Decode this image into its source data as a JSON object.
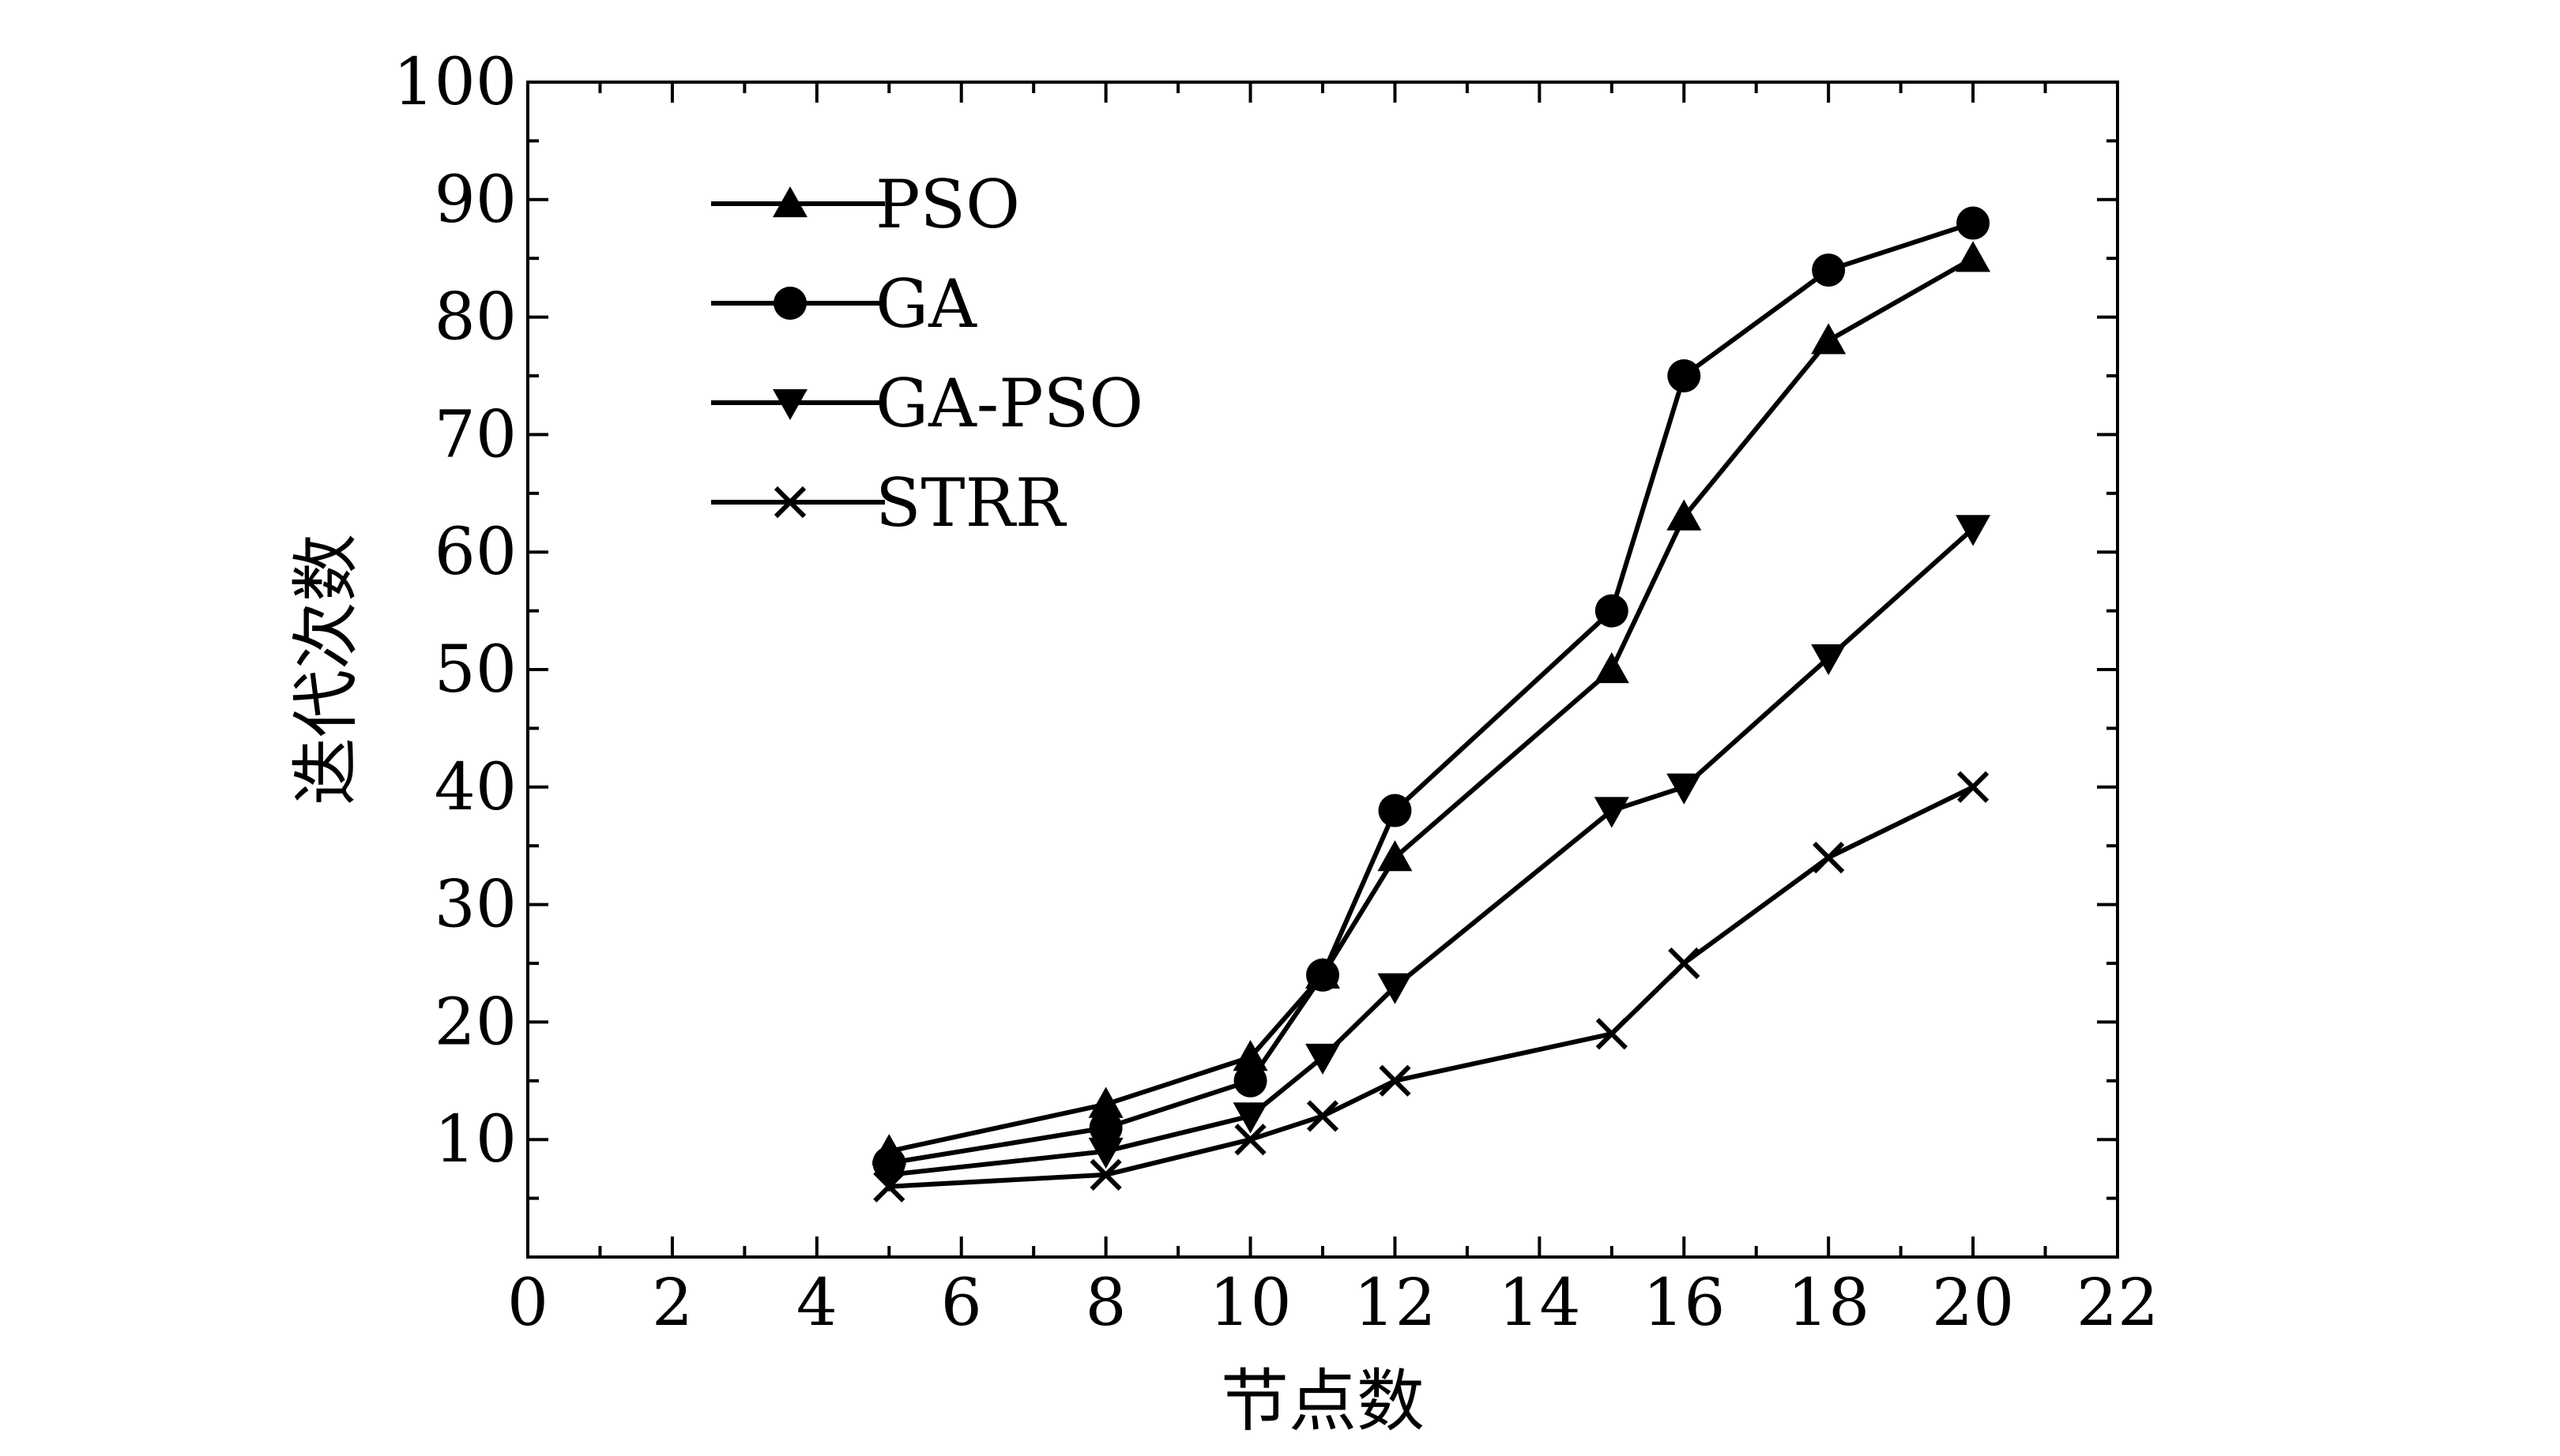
{
  "chart_data": {
    "type": "line",
    "title": "",
    "xlabel": "节点数",
    "ylabel": "迭代次数",
    "xlim": [
      0,
      22
    ],
    "ylim": [
      0,
      100
    ],
    "xticks": [
      0,
      2,
      4,
      6,
      8,
      10,
      12,
      14,
      16,
      18,
      20,
      22
    ],
    "yticks": [
      10,
      20,
      30,
      40,
      50,
      60,
      70,
      80,
      90,
      100
    ],
    "grid": false,
    "legend_position": "top-left",
    "x": [
      5,
      8,
      10,
      11,
      12,
      15,
      16,
      18,
      20
    ],
    "series": [
      {
        "name": "PSO",
        "marker": "triangle-up",
        "values": [
          9,
          13,
          17,
          24,
          34,
          50,
          63,
          78,
          85
        ]
      },
      {
        "name": "GA",
        "marker": "circle",
        "values": [
          8,
          11,
          15,
          24,
          38,
          55,
          75,
          84,
          88
        ]
      },
      {
        "name": "GA-PSO",
        "marker": "triangle-down",
        "values": [
          7,
          9,
          12,
          17,
          23,
          38,
          40,
          51,
          62
        ]
      },
      {
        "name": "STRR",
        "marker": "x",
        "values": [
          6,
          7,
          10,
          12,
          15,
          19,
          25,
          34,
          40
        ]
      }
    ]
  }
}
